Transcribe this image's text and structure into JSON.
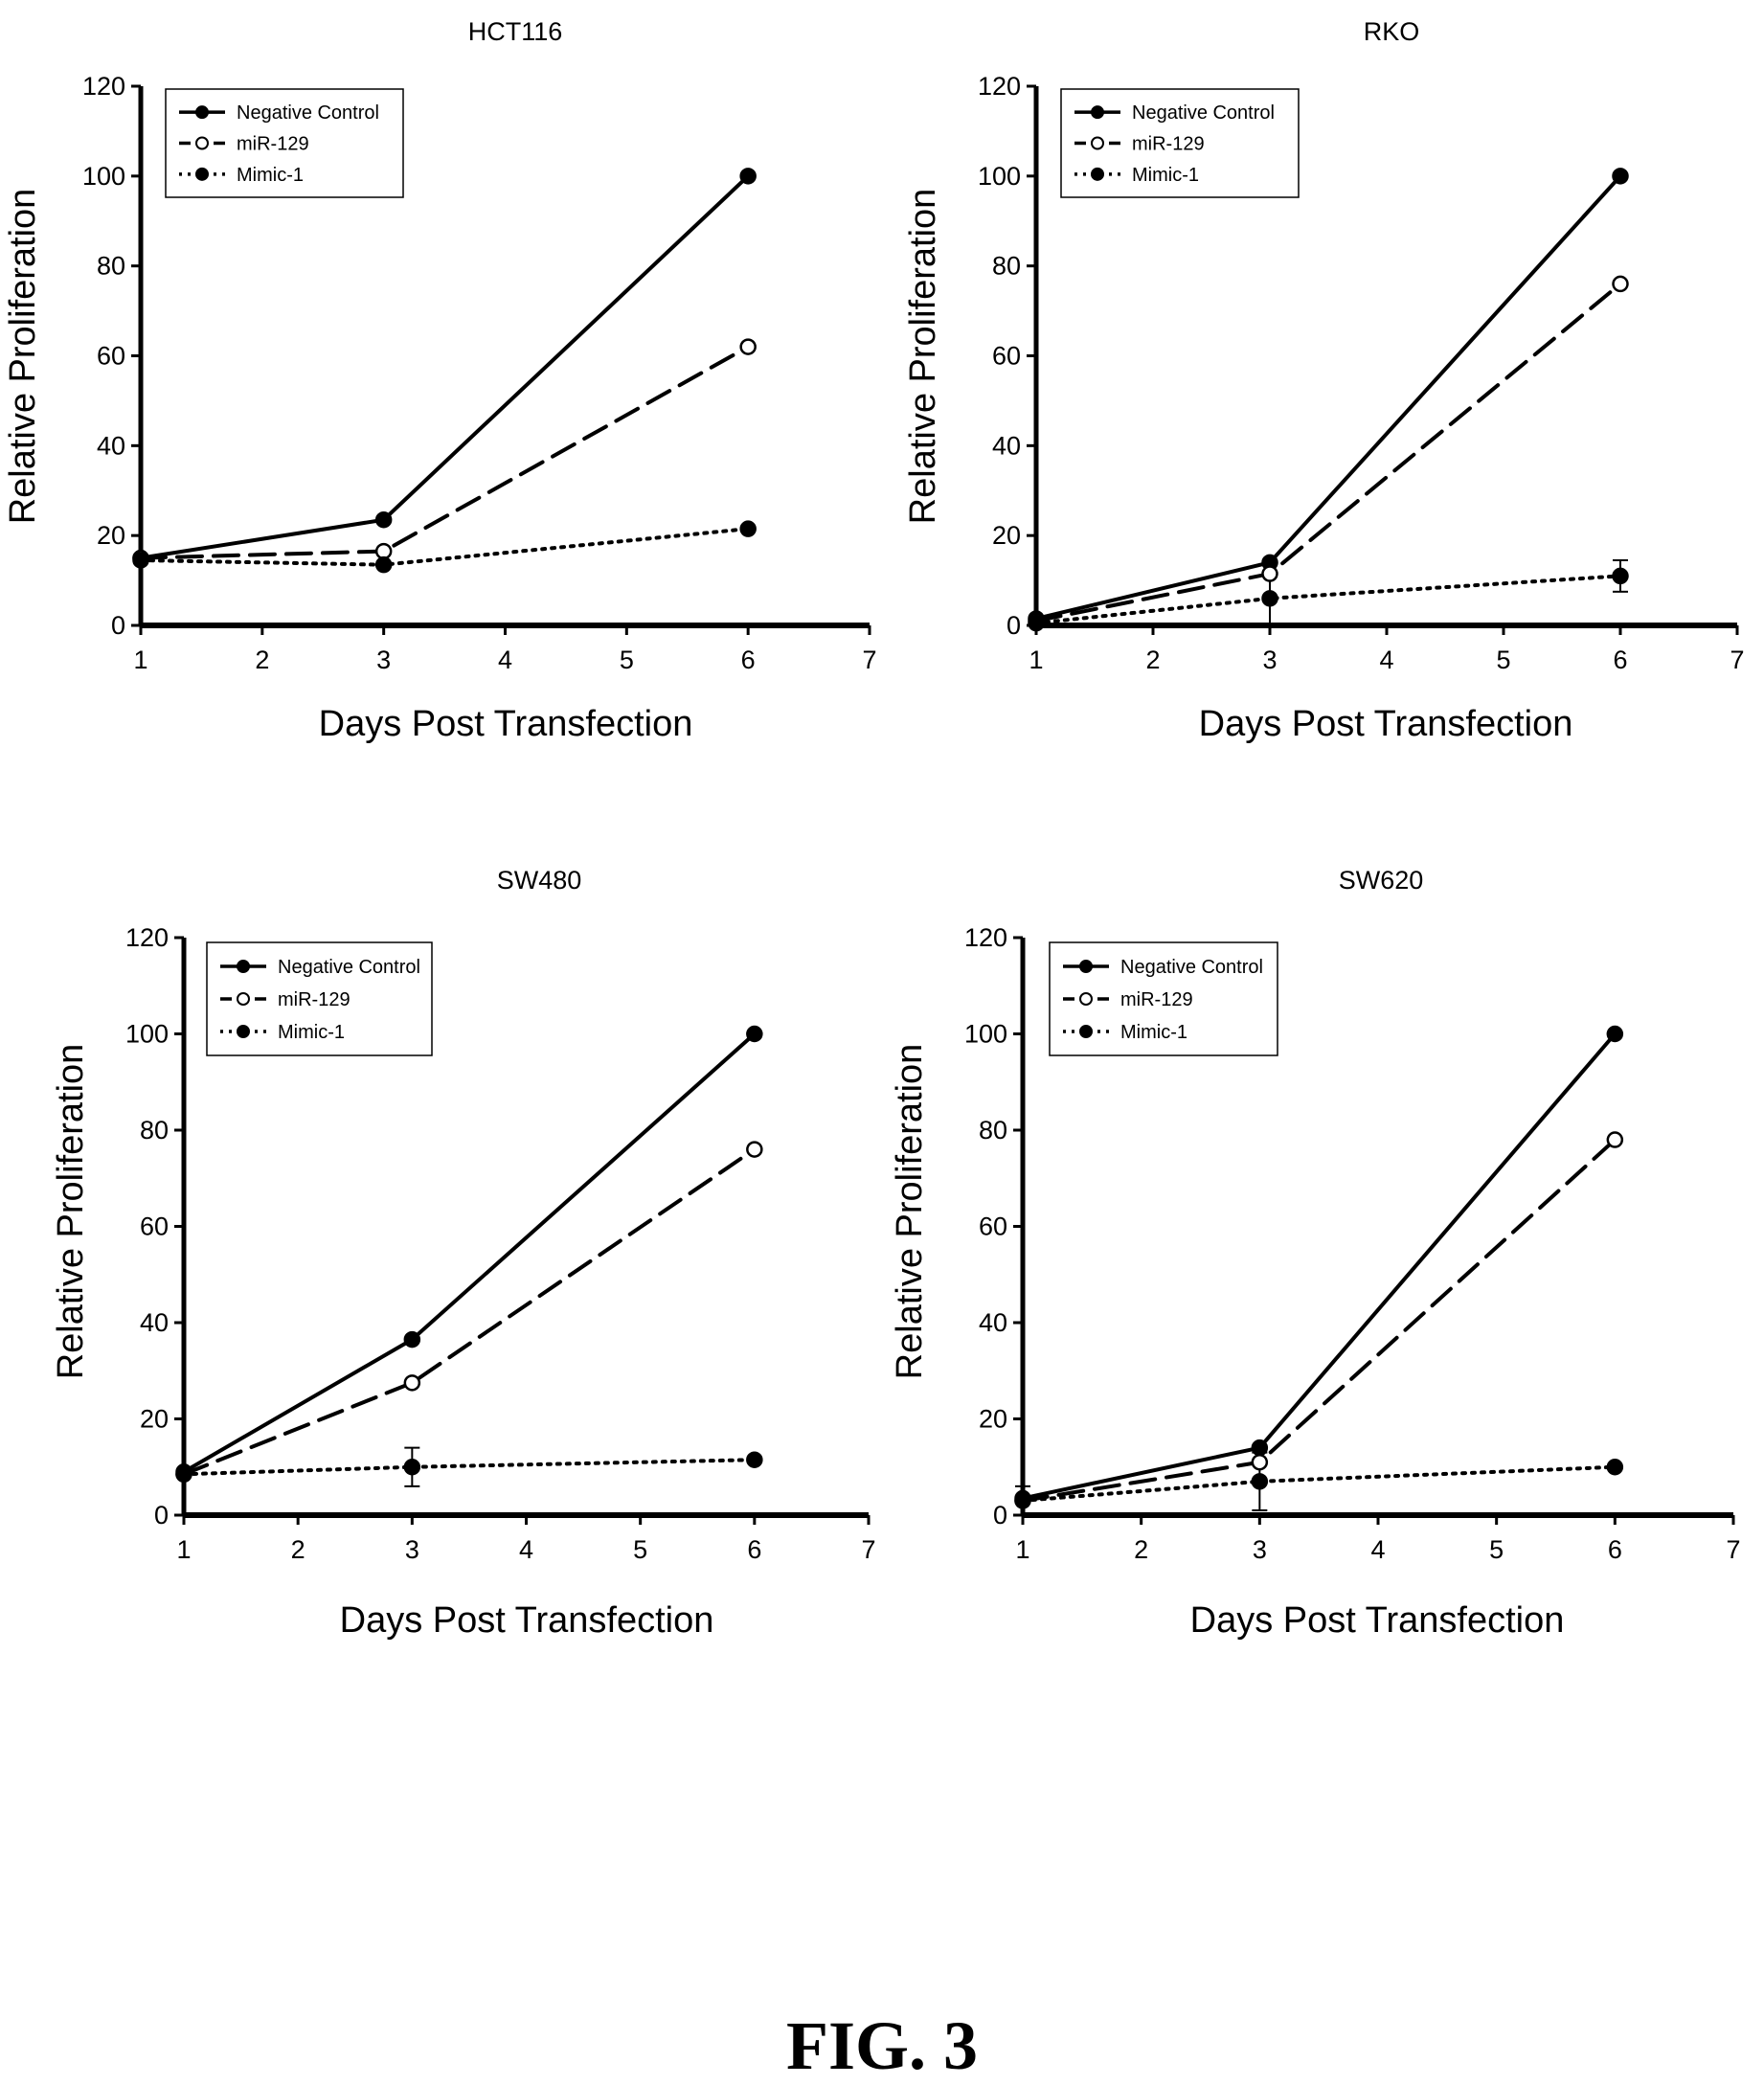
{
  "figure_label": "FIG. 3",
  "chart_data": [
    {
      "type": "line",
      "title": "HCT116",
      "xlabel": "Days Post Transfection",
      "ylabel": "Relative Proliferation",
      "xlim": [
        1,
        7
      ],
      "ylim": [
        0,
        120
      ],
      "xticks": [
        1,
        2,
        3,
        4,
        5,
        6,
        7
      ],
      "yticks": [
        0,
        20,
        40,
        60,
        80,
        100,
        120
      ],
      "grid": false,
      "legend": "top-left",
      "series": [
        {
          "name": "Negative Control",
          "line": "solid",
          "marker": "filled",
          "x": [
            1,
            3,
            6
          ],
          "y": [
            15,
            23.5,
            100
          ]
        },
        {
          "name": "miR-129",
          "line": "dashed",
          "marker": "open",
          "x": [
            1,
            3,
            6
          ],
          "y": [
            15,
            16.5,
            62
          ]
        },
        {
          "name": "Mimic-1",
          "line": "dotted",
          "marker": "filled",
          "x": [
            1,
            3,
            6
          ],
          "y": [
            14.5,
            13.5,
            21.5
          ]
        }
      ]
    },
    {
      "type": "line",
      "title": "RKO",
      "xlabel": "Days Post Transfection",
      "ylabel": "Relative Proliferation",
      "xlim": [
        1,
        7
      ],
      "ylim": [
        0,
        120
      ],
      "xticks": [
        1,
        2,
        3,
        4,
        5,
        6,
        7
      ],
      "yticks": [
        0,
        20,
        40,
        60,
        80,
        100,
        120
      ],
      "grid": false,
      "legend": "top-left",
      "series": [
        {
          "name": "Negative Control",
          "line": "solid",
          "marker": "filled",
          "x": [
            1,
            3,
            6
          ],
          "y": [
            1.5,
            14,
            100
          ]
        },
        {
          "name": "miR-129",
          "line": "dashed",
          "marker": "open",
          "x": [
            1,
            3,
            6
          ],
          "y": [
            1,
            11.5,
            76
          ]
        },
        {
          "name": "Mimic-1",
          "line": "dotted",
          "marker": "filled",
          "x": [
            1,
            3,
            6
          ],
          "y": [
            0.5,
            6,
            11
          ],
          "err": [
            0,
            6,
            3.5
          ]
        }
      ]
    },
    {
      "type": "line",
      "title": "SW480",
      "xlabel": "Days Post Transfection",
      "ylabel": "Relative Proliferation",
      "xlim": [
        1,
        7
      ],
      "ylim": [
        0,
        120
      ],
      "xticks": [
        1,
        2,
        3,
        4,
        5,
        6,
        7
      ],
      "yticks": [
        0,
        20,
        40,
        60,
        80,
        100,
        120
      ],
      "grid": false,
      "legend": "top-left",
      "series": [
        {
          "name": "Negative Control",
          "line": "solid",
          "marker": "filled",
          "x": [
            1,
            3,
            6
          ],
          "y": [
            9,
            36.5,
            100
          ]
        },
        {
          "name": "miR-129",
          "line": "dashed",
          "marker": "open",
          "x": [
            1,
            3,
            6
          ],
          "y": [
            8.5,
            27.5,
            76
          ]
        },
        {
          "name": "Mimic-1",
          "line": "dotted",
          "marker": "filled",
          "x": [
            1,
            3,
            6
          ],
          "y": [
            8.5,
            10,
            11.5
          ],
          "err": [
            0,
            4,
            0
          ]
        }
      ]
    },
    {
      "type": "line",
      "title": "SW620",
      "xlabel": "Days Post Transfection",
      "ylabel": "Relative Proliferation",
      "xlim": [
        1,
        7
      ],
      "ylim": [
        0,
        120
      ],
      "xticks": [
        1,
        2,
        3,
        4,
        5,
        6,
        7
      ],
      "yticks": [
        0,
        20,
        40,
        60,
        80,
        100,
        120
      ],
      "grid": false,
      "legend": "top-left",
      "series": [
        {
          "name": "Negative Control",
          "line": "solid",
          "marker": "filled",
          "x": [
            1,
            3,
            6
          ],
          "y": [
            3.5,
            14,
            100
          ]
        },
        {
          "name": "miR-129",
          "line": "dashed",
          "marker": "open",
          "x": [
            1,
            3,
            6
          ],
          "y": [
            3,
            11,
            78
          ]
        },
        {
          "name": "Mimic-1",
          "line": "dotted",
          "marker": "filled",
          "x": [
            1,
            3,
            6
          ],
          "y": [
            3,
            7,
            10
          ],
          "err": [
            3,
            6,
            0
          ]
        }
      ]
    }
  ]
}
